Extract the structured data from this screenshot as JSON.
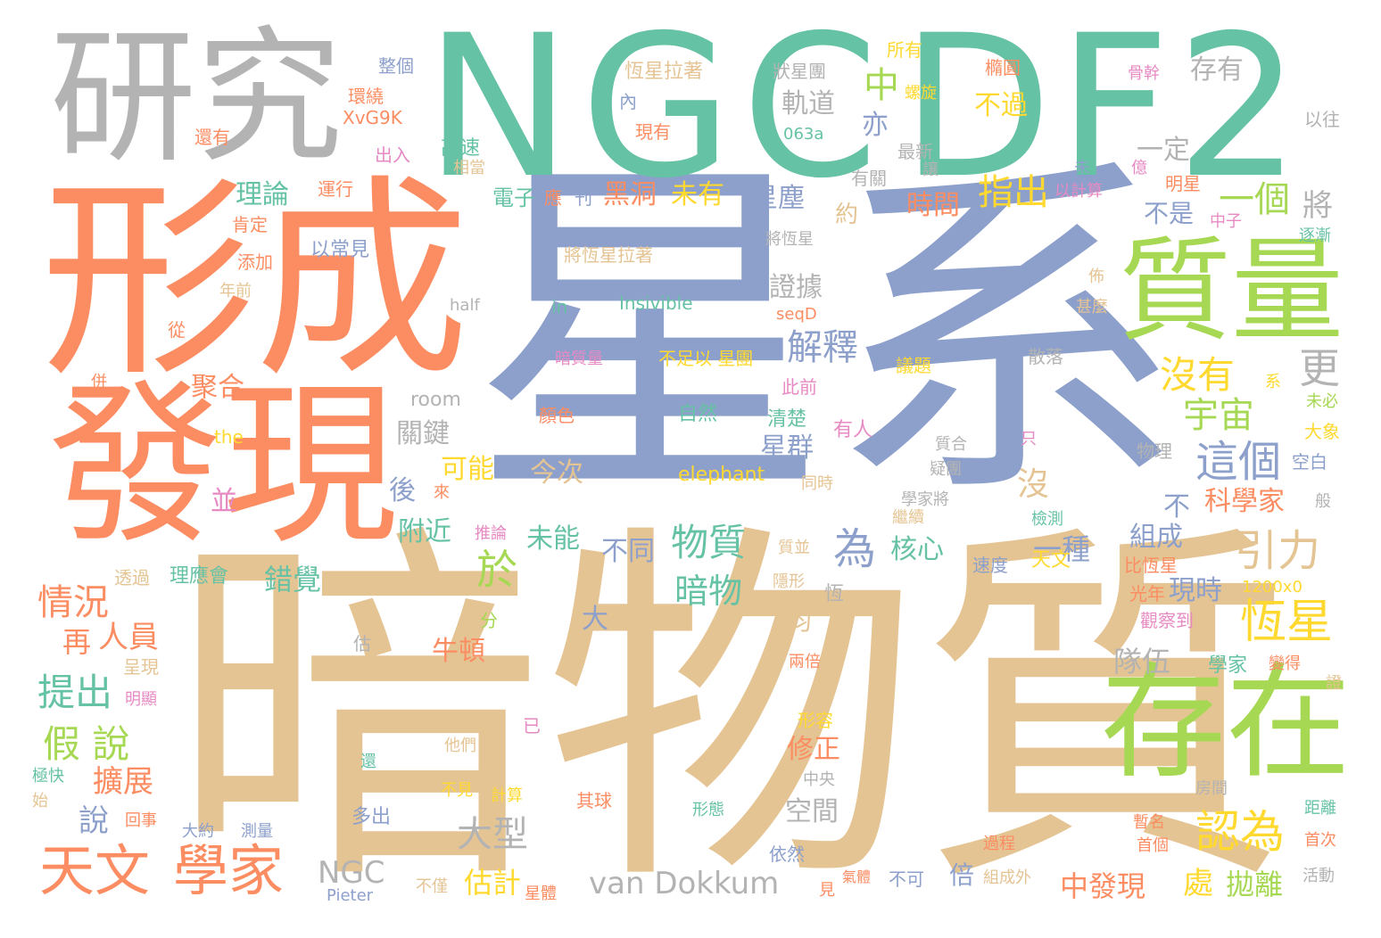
{
  "palette": {
    "teal": "#66c2a5",
    "orange": "#fc8d62",
    "blue": "#8da0cb",
    "pink": "#e78ac3",
    "green": "#a6d854",
    "yellow": "#ffd92f",
    "tan": "#e5c494",
    "gray": "#b3b3b3"
  },
  "words": [
    {
      "text": "星系",
      "color": "#8da0cb"
    },
    {
      "text": "暗物質",
      "color": "#e5c494"
    },
    {
      "text": "NGC",
      "color": "#66c2a5"
    },
    {
      "text": "DF2",
      "color": "#66c2a5"
    },
    {
      "text": "形成",
      "color": "#fc8d62"
    },
    {
      "text": "發現",
      "color": "#fc8d62"
    },
    {
      "text": "研究",
      "color": "#b3b3b3"
    },
    {
      "text": "質量",
      "color": "#a6d854"
    },
    {
      "text": "存在",
      "color": "#a6d854"
    },
    {
      "text": "天文",
      "color": "#fc8d62"
    },
    {
      "text": "學家",
      "color": "#fc8d62"
    },
    {
      "text": "認為",
      "color": "#ffd92f"
    },
    {
      "text": "這個",
      "color": "#8da0cb"
    },
    {
      "text": "恆星",
      "color": "#ffd92f"
    },
    {
      "text": "引力",
      "color": "#e5c494"
    },
    {
      "text": "沒有",
      "color": "#ffd92f"
    },
    {
      "text": "宇宙",
      "color": "#a6d854"
    },
    {
      "text": "物質",
      "color": "#66c2a5"
    },
    {
      "text": "暗物",
      "color": "#66c2a5"
    },
    {
      "text": "為",
      "color": "#8da0cb"
    },
    {
      "text": "於",
      "color": "#a6d854"
    },
    {
      "text": "解釋",
      "color": "#8da0cb"
    },
    {
      "text": "指出",
      "color": "#ffd92f"
    },
    {
      "text": "一個",
      "color": "#a6d854"
    },
    {
      "text": "中",
      "color": "#a6d854"
    },
    {
      "text": "軌道",
      "color": "#b3b3b3"
    },
    {
      "text": "亦",
      "color": "#8da0cb"
    },
    {
      "text": "不過",
      "color": "#ffd92f"
    },
    {
      "text": "存有",
      "color": "#b3b3b3"
    },
    {
      "text": "一定",
      "color": "#b3b3b3"
    },
    {
      "text": "星塵",
      "color": "#8da0cb"
    },
    {
      "text": "時間",
      "color": "#fc8d62"
    },
    {
      "text": "黑洞",
      "color": "#fc8d62"
    },
    {
      "text": "未有",
      "color": "#ffd92f"
    },
    {
      "text": "約",
      "color": "#e5c494"
    },
    {
      "text": "證據",
      "color": "#b3b3b3"
    },
    {
      "text": "更",
      "color": "#b3b3b3"
    },
    {
      "text": "將",
      "color": "#b3b3b3"
    },
    {
      "text": "不是",
      "color": "#8da0cb"
    },
    {
      "text": "沒",
      "color": "#e5c494"
    },
    {
      "text": "不",
      "color": "#8da0cb"
    },
    {
      "text": "科學家",
      "color": "#fc8d62"
    },
    {
      "text": "組成",
      "color": "#8da0cb"
    },
    {
      "text": "一種",
      "color": "#8da0cb"
    },
    {
      "text": "核心",
      "color": "#66c2a5"
    },
    {
      "text": "不同",
      "color": "#8da0cb"
    },
    {
      "text": "未能",
      "color": "#66c2a5"
    },
    {
      "text": "今次",
      "color": "#e5c494"
    },
    {
      "text": "可能",
      "color": "#ffd92f"
    },
    {
      "text": "星群",
      "color": "#8da0cb"
    },
    {
      "text": "關鍵",
      "color": "#b3b3b3"
    },
    {
      "text": "後",
      "color": "#8da0cb"
    },
    {
      "text": "附近",
      "color": "#66c2a5"
    },
    {
      "text": "錯覺",
      "color": "#66c2a5"
    },
    {
      "text": "牛頓",
      "color": "#fc8d62"
    },
    {
      "text": "大",
      "color": "#8da0cb"
    },
    {
      "text": "均",
      "color": "#e5c494"
    },
    {
      "text": "隊伍",
      "color": "#b3b3b3"
    },
    {
      "text": "現時",
      "color": "#8da0cb"
    },
    {
      "text": "修正",
      "color": "#fc8d62"
    },
    {
      "text": "空間",
      "color": "#b3b3b3"
    },
    {
      "text": "大型",
      "color": "#b3b3b3"
    },
    {
      "text": "van Dokkum",
      "color": "#b3b3b3"
    },
    {
      "text": "NGC",
      "color": "#b3b3b3"
    },
    {
      "text": "估計",
      "color": "#ffd92f"
    },
    {
      "text": "倍",
      "color": "#8da0cb"
    },
    {
      "text": "中發現",
      "color": "#fc8d62"
    },
    {
      "text": "處",
      "color": "#ffd92f"
    },
    {
      "text": "拋離",
      "color": "#a6d854"
    },
    {
      "text": "理論",
      "color": "#66c2a5"
    },
    {
      "text": "聚合",
      "color": "#fc8d62"
    },
    {
      "text": "並",
      "color": "#e78ac3"
    },
    {
      "text": "情況",
      "color": "#fc8d62"
    },
    {
      "text": "再",
      "color": "#fc8d62"
    },
    {
      "text": "人員",
      "color": "#fc8d62"
    },
    {
      "text": "提出",
      "color": "#66c2a5"
    },
    {
      "text": "假 說",
      "color": "#a6d854"
    },
    {
      "text": "擴展",
      "color": "#fc8d62"
    },
    {
      "text": "說",
      "color": "#8da0cb"
    },
    {
      "text": "所有",
      "color": "#ffd92f"
    },
    {
      "text": "整個",
      "color": "#8da0cb"
    },
    {
      "text": "環繞",
      "color": "#fc8d62"
    },
    {
      "text": "XvG9K",
      "color": "#fc8d62"
    },
    {
      "text": "還有",
      "color": "#fc8d62"
    },
    {
      "text": "出入",
      "color": "#e78ac3"
    },
    {
      "text": "運行",
      "color": "#fc8d62"
    },
    {
      "text": "肯定",
      "color": "#fc8d62"
    },
    {
      "text": "添加",
      "color": "#fc8d62"
    },
    {
      "text": "年前",
      "color": "#e5c494"
    },
    {
      "text": "從",
      "color": "#fc8d62"
    },
    {
      "text": "併",
      "color": "#fc8d62"
    },
    {
      "text": "以常見",
      "color": "#8da0cb"
    },
    {
      "text": "恆星拉著",
      "color": "#e5c494"
    },
    {
      "text": "內",
      "color": "#8da0cb"
    },
    {
      "text": "現有",
      "color": "#fc8d62"
    },
    {
      "text": "高速",
      "color": "#66c2a5"
    },
    {
      "text": "相當",
      "color": "#e5c494"
    },
    {
      "text": "電子",
      "color": "#66c2a5"
    },
    {
      "text": "應",
      "color": "#fc8d62"
    },
    {
      "text": "刊",
      "color": "#8da0cb"
    },
    {
      "text": "狀星團",
      "color": "#b3b3b3"
    },
    {
      "text": "063a",
      "color": "#66c2a5"
    },
    {
      "text": "最新",
      "color": "#b3b3b3"
    },
    {
      "text": "有關",
      "color": "#b3b3b3"
    },
    {
      "text": "螺旋",
      "color": "#ffd92f"
    },
    {
      "text": "讓",
      "color": "#b3b3b3"
    },
    {
      "text": "橢圓",
      "color": "#fc8d62"
    },
    {
      "text": "未",
      "color": "#8da0cb"
    },
    {
      "text": "以計算",
      "color": "#e78ac3"
    },
    {
      "text": "億",
      "color": "#e78ac3"
    },
    {
      "text": "明星",
      "color": "#fc8d62"
    },
    {
      "text": "骨幹",
      "color": "#e78ac3"
    },
    {
      "text": "以往",
      "color": "#b3b3b3"
    },
    {
      "text": "中子",
      "color": "#e78ac3"
    },
    {
      "text": "逐漸",
      "color": "#66c2a5"
    },
    {
      "text": "將恆星",
      "color": "#b3b3b3"
    },
    {
      "text": "將恆星拉著",
      "color": "#e5c494"
    },
    {
      "text": "half",
      "color": "#b3b3b3"
    },
    {
      "text": "in",
      "color": "#66c2a5"
    },
    {
      "text": "Insivible",
      "color": "#66c2a5"
    },
    {
      "text": "seqD",
      "color": "#fc8d62"
    },
    {
      "text": "佈",
      "color": "#e5c494"
    },
    {
      "text": "甚麼",
      "color": "#e5c494"
    },
    {
      "text": "room",
      "color": "#b3b3b3"
    },
    {
      "text": "暗質量",
      "color": "#e78ac3"
    },
    {
      "text": "不足以 星團",
      "color": "#ffd92f"
    },
    {
      "text": "此前",
      "color": "#e78ac3"
    },
    {
      "text": "議題",
      "color": "#ffd92f"
    },
    {
      "text": "散落",
      "color": "#b3b3b3"
    },
    {
      "text": "系",
      "color": "#ffd92f"
    },
    {
      "text": "未必",
      "color": "#a6d854"
    },
    {
      "text": "大象",
      "color": "#ffd92f"
    },
    {
      "text": "the",
      "color": "#ffd92f"
    },
    {
      "text": "顏色",
      "color": "#fc8d62"
    },
    {
      "text": "自然",
      "color": "#66c2a5"
    },
    {
      "text": "清楚",
      "color": "#66c2a5"
    },
    {
      "text": "有人",
      "color": "#e78ac3"
    },
    {
      "text": "質合",
      "color": "#b3b3b3"
    },
    {
      "text": "疑團",
      "color": "#b3b3b3"
    },
    {
      "text": "只",
      "color": "#e78ac3"
    },
    {
      "text": "物理",
      "color": "#b3b3b3"
    },
    {
      "text": "空白",
      "color": "#8da0cb"
    },
    {
      "text": "elephant",
      "color": "#ffd92f"
    },
    {
      "text": "同時",
      "color": "#e5c494"
    },
    {
      "text": "學家將",
      "color": "#b3b3b3"
    },
    {
      "text": "般",
      "color": "#b3b3b3"
    },
    {
      "text": "繼續",
      "color": "#e5c494"
    },
    {
      "text": "推論",
      "color": "#e78ac3"
    },
    {
      "text": "來",
      "color": "#fc8d62"
    },
    {
      "text": "檢測",
      "color": "#66c2a5"
    },
    {
      "text": "質並",
      "color": "#e5c494"
    },
    {
      "text": "速度",
      "color": "#8da0cb"
    },
    {
      "text": "天文",
      "color": "#ffd92f"
    },
    {
      "text": "比恆星",
      "color": "#fc8d62"
    },
    {
      "text": "透過",
      "color": "#e5c494"
    },
    {
      "text": "理應會",
      "color": "#66c2a5"
    },
    {
      "text": "概念",
      "color": "#e5c494"
    },
    {
      "text": "隱形",
      "color": "#e5c494"
    },
    {
      "text": "恆",
      "color": "#b3b3b3"
    },
    {
      "text": "光年",
      "color": "#fc8d62"
    },
    {
      "text": "1200x0",
      "color": "#ffd92f"
    },
    {
      "text": "分",
      "color": "#a6d854"
    },
    {
      "text": "觀察到",
      "color": "#e78ac3"
    },
    {
      "text": "估",
      "color": "#b3b3b3"
    },
    {
      "text": "呈現",
      "color": "#e5c494"
    },
    {
      "text": "兩倍",
      "color": "#fc8d62"
    },
    {
      "text": "學家",
      "color": "#66c2a5"
    },
    {
      "text": "變得",
      "color": "#fc8d62"
    },
    {
      "text": "證",
      "color": "#e5c494"
    },
    {
      "text": "明顯",
      "color": "#e78ac3"
    },
    {
      "text": "形容",
      "color": "#ffd92f"
    },
    {
      "text": "已",
      "color": "#e78ac3"
    },
    {
      "text": "他們",
      "color": "#e5c494"
    },
    {
      "text": "還",
      "color": "#66c2a5"
    },
    {
      "text": "中央",
      "color": "#b3b3b3"
    },
    {
      "text": "極快",
      "color": "#66c2a5"
    },
    {
      "text": "不見",
      "color": "#ffd92f"
    },
    {
      "text": "計算",
      "color": "#ffd92f"
    },
    {
      "text": "其球",
      "color": "#fc8d62"
    },
    {
      "text": "房間",
      "color": "#b3b3b3"
    },
    {
      "text": "始",
      "color": "#e5c494"
    },
    {
      "text": "多出",
      "color": "#8da0cb"
    },
    {
      "text": "形態",
      "color": "#66c2a5"
    },
    {
      "text": "距離",
      "color": "#66c2a5"
    },
    {
      "text": "回事",
      "color": "#fc8d62"
    },
    {
      "text": "大約",
      "color": "#8da0cb"
    },
    {
      "text": "測量",
      "color": "#8da0cb"
    },
    {
      "text": "暫名",
      "color": "#fc8d62"
    },
    {
      "text": "首個",
      "color": "#fc8d62"
    },
    {
      "text": "首次",
      "color": "#fc8d62"
    },
    {
      "text": "過程",
      "color": "#fc8d62"
    },
    {
      "text": "依然",
      "color": "#8da0cb"
    },
    {
      "text": "見",
      "color": "#fc8d62"
    },
    {
      "text": "氣體",
      "color": "#fc8d62"
    },
    {
      "text": "不可",
      "color": "#8da0cb"
    },
    {
      "text": "組成外",
      "color": "#e5c494"
    },
    {
      "text": "活動",
      "color": "#b3b3b3"
    },
    {
      "text": "不僅",
      "color": "#e5c494"
    },
    {
      "text": "星體",
      "color": "#fc8d62"
    },
    {
      "text": "Pieter",
      "color": "#8da0cb"
    }
  ]
}
